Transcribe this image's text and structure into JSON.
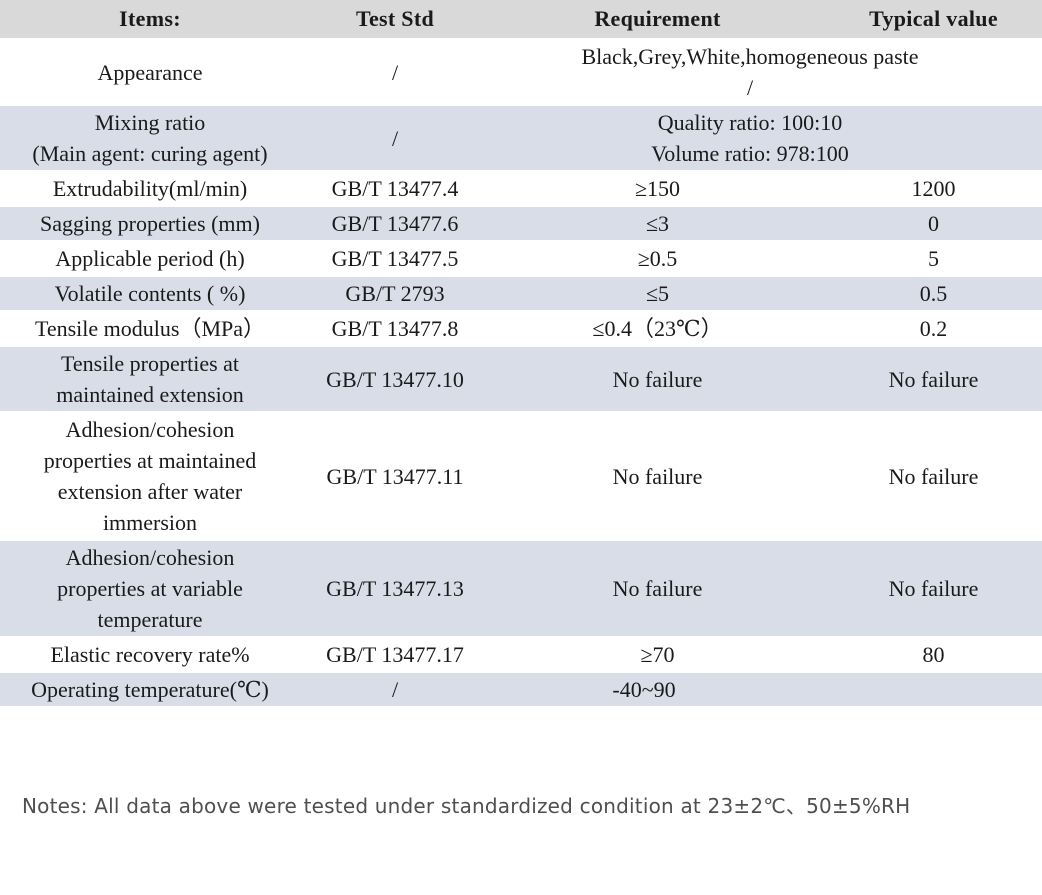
{
  "colors": {
    "header_bg": "#d9d9d9",
    "row_alt_bg": "#d8dde8",
    "text": "#1a1a1a",
    "notes_text": "#4f4f4f"
  },
  "table": {
    "headers": [
      "Items:",
      "Test Std",
      "Requirement",
      "Typical value"
    ],
    "rows": [
      {
        "item": "Appearance",
        "test_std": "/",
        "merged": true,
        "merge_style": "full",
        "requirement": "Black,Grey,White,homogeneous paste\n/"
      },
      {
        "item": "Mixing ratio\n(Main agent: curing agent)",
        "test_std": "/",
        "merged": true,
        "merge_style": "full",
        "requirement": "Quality ratio: 100:10\nVolume ratio: 978:100"
      },
      {
        "item": "Extrudability(ml/min)",
        "test_std": "GB/T 13477.4",
        "requirement": "≥150",
        "typical": "1200"
      },
      {
        "item": "Sagging properties (mm)",
        "test_std": "GB/T 13477.6",
        "requirement": "≤3",
        "typical": "0"
      },
      {
        "item": "Applicable period (h)",
        "test_std": "GB/T 13477.5",
        "requirement": "≥0.5",
        "typical": "5"
      },
      {
        "item": "Volatile contents ( %)",
        "test_std": "GB/T 2793",
        "requirement": "≤5",
        "typical": "0.5"
      },
      {
        "item": "Tensile modulus（MPa）",
        "test_std": "GB/T 13477.8",
        "requirement": "≤0.4（23℃）",
        "typical": "0.2"
      },
      {
        "item": "Tensile properties at\nmaintained extension",
        "test_std": "GB/T 13477.10",
        "requirement": "No failure",
        "typical": "No failure"
      },
      {
        "item": "Adhesion/cohesion\nproperties at maintained\nextension after water\nimmersion",
        "test_std": "GB/T 13477.11",
        "requirement": "No failure",
        "typical": "No failure"
      },
      {
        "item": "Adhesion/cohesion\nproperties at variable\ntemperature",
        "test_std": "GB/T 13477.13",
        "requirement": "No failure",
        "typical": "No failure"
      },
      {
        "item": "Elastic recovery rate%",
        "test_std": "GB/T 13477.17",
        "requirement": "≥70",
        "typical": "80"
      },
      {
        "item": "Operating temperature(℃)",
        "test_std": "/",
        "merged": true,
        "merge_style": "left",
        "requirement": "-40~90"
      }
    ]
  },
  "notes": "Notes: All data above were tested under standardized condition at 23±2℃、50±5%RH"
}
